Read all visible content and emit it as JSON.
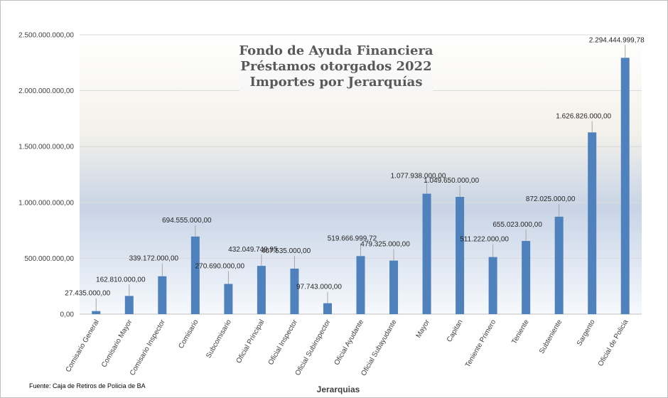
{
  "chart_data": {
    "type": "bar",
    "title_lines": [
      "Fondo de Ayuda Financiera",
      "Préstamos otorgados 2022",
      "Importes por Jerarquías"
    ],
    "xlabel": "Jerarquias",
    "ylabel": "",
    "ylim": [
      0,
      2500000000
    ],
    "yticks": [
      0,
      500000000,
      1000000000,
      1500000000,
      2000000000,
      2500000000
    ],
    "ytick_labels": [
      "0,00",
      "500.000.000,00",
      "1.000.000.000,00",
      "1.500.000.000,00",
      "2.000.000.000,00",
      "2.500.000.000,00"
    ],
    "grid": true,
    "legend": "none",
    "bar_color": "#4f81bd",
    "categories": [
      "Comisario General",
      "Comisario Mayor",
      "Comisario Inspector",
      "Comisario",
      "Subcomisario",
      "Oficial Principal",
      "Oficial Inspector",
      "Oficial Subinspector",
      "Oficial Ayudante",
      "Oficial Subayudante",
      "Mayor",
      "Capitan",
      "Teniente Primero",
      "Teniente",
      "Subteniente",
      "Sargento",
      "Oficial de Policia"
    ],
    "values": [
      27435000,
      162810000,
      339172000,
      694555000,
      270690000,
      432049749.95,
      407535000,
      97743000,
      519666999.72,
      479325000,
      1077938000,
      1049650000,
      511222000,
      655023000,
      872025000,
      1626826000,
      2294444999.78
    ],
    "value_labels": [
      "27.435.000,00",
      "162.810.000,00",
      "339.172.000,00",
      "694.555.000,00",
      "270.690.000,00",
      "432.049.749,95",
      "407.535.000,00",
      "97.743.000,00",
      "519.666.999,72",
      "479.325.000,00",
      "1.077.938.000,00",
      "1.049.650.000,00",
      "511.222.000,00",
      "655.023.000,00",
      "872.025.000,00",
      "1.626.826.000,00",
      "2.294.444.999,78"
    ],
    "source_note": "Fuente: Caja de Retiros de Policia de BA"
  }
}
